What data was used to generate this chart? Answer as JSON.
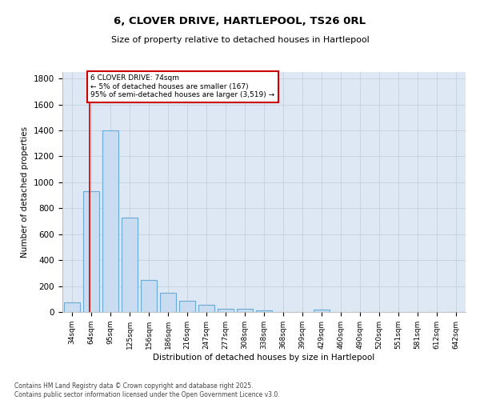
{
  "title_line1": "6, CLOVER DRIVE, HARTLEPOOL, TS26 0RL",
  "title_line2": "Size of property relative to detached houses in Hartlepool",
  "xlabel": "Distribution of detached houses by size in Hartlepool",
  "ylabel": "Number of detached properties",
  "bar_color": "#c9dcf0",
  "bar_edge_color": "#6aaad4",
  "grid_color": "#c8d4e0",
  "bg_color": "#dde8f4",
  "categories": [
    "34sqm",
    "64sqm",
    "95sqm",
    "125sqm",
    "156sqm",
    "186sqm",
    "216sqm",
    "247sqm",
    "277sqm",
    "308sqm",
    "338sqm",
    "368sqm",
    "399sqm",
    "429sqm",
    "460sqm",
    "490sqm",
    "520sqm",
    "551sqm",
    "581sqm",
    "612sqm",
    "642sqm"
  ],
  "values": [
    75,
    930,
    1400,
    730,
    245,
    145,
    85,
    55,
    25,
    25,
    15,
    0,
    0,
    20,
    0,
    0,
    0,
    0,
    0,
    0,
    0
  ],
  "red_line_x": 1,
  "annotation_text": "6 CLOVER DRIVE: 74sqm\n← 5% of detached houses are smaller (167)\n95% of semi-detached houses are larger (3,519) →",
  "annotation_box_color": "#ffffff",
  "annotation_edge_color": "#cc0000",
  "red_line_color": "#cc0000",
  "ylim": [
    0,
    1850
  ],
  "yticks": [
    0,
    200,
    400,
    600,
    800,
    1000,
    1200,
    1400,
    1600,
    1800
  ],
  "footnote": "Contains HM Land Registry data © Crown copyright and database right 2025.\nContains public sector information licensed under the Open Government Licence v3.0."
}
